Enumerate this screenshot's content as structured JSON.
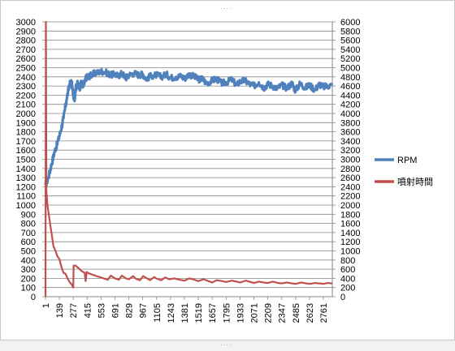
{
  "chart_data": {
    "type": "line",
    "title": "",
    "xlabel": "",
    "ylabel": "",
    "y_left": {
      "range": [
        0,
        3000
      ],
      "tick_step": 100
    },
    "y_right": {
      "range": [
        0,
        6000
      ],
      "tick_step": 200
    },
    "x_range": [
      1,
      2850
    ],
    "x_tick_labels": [
      "1",
      "139",
      "277",
      "415",
      "553",
      "691",
      "829",
      "967",
      "1105",
      "1243",
      "1381",
      "1519",
      "1657",
      "1795",
      "1933",
      "2071",
      "2209",
      "2347",
      "2485",
      "2623",
      "2761"
    ],
    "grid": "horizontal",
    "legend_position": "right",
    "series": [
      {
        "name": "RPM",
        "axis": "left",
        "color": "#4f81bd",
        "x": [
          1,
          30,
          60,
          90,
          120,
          150,
          180,
          210,
          240,
          260,
          277,
          290,
          300,
          320,
          340,
          360,
          380,
          400,
          415,
          440,
          470,
          500,
          553,
          600,
          650,
          691,
          720,
          760,
          800,
          829,
          880,
          930,
          967,
          1000,
          1050,
          1105,
          1150,
          1200,
          1243,
          1300,
          1350,
          1381,
          1430,
          1480,
          1519,
          1560,
          1600,
          1657,
          1700,
          1750,
          1795,
          1850,
          1900,
          1933,
          1980,
          2030,
          2071,
          2120,
          2170,
          2209,
          2260,
          2300,
          2347,
          2400,
          2450,
          2485,
          2530,
          2580,
          2623,
          2680,
          2720,
          2761,
          2800,
          2850
        ],
        "y": [
          1220,
          1300,
          1440,
          1580,
          1680,
          1800,
          1950,
          2150,
          2320,
          2340,
          2200,
          2160,
          2270,
          2330,
          2280,
          2340,
          2300,
          2380,
          2400,
          2410,
          2430,
          2440,
          2460,
          2450,
          2420,
          2430,
          2410,
          2440,
          2390,
          2420,
          2440,
          2420,
          2430,
          2380,
          2410,
          2420,
          2400,
          2430,
          2390,
          2400,
          2410,
          2380,
          2430,
          2400,
          2370,
          2380,
          2330,
          2360,
          2380,
          2330,
          2340,
          2370,
          2310,
          2350,
          2360,
          2320,
          2300,
          2340,
          2280,
          2320,
          2300,
          2270,
          2310,
          2280,
          2330,
          2250,
          2330,
          2280,
          2310,
          2260,
          2320,
          2290,
          2300,
          2310
        ]
      },
      {
        "name": "噴射時間",
        "axis": "right",
        "color": "#c0504d",
        "x": [
          1,
          5,
          10,
          20,
          40,
          60,
          80,
          100,
          120,
          140,
          160,
          180,
          200,
          220,
          240,
          260,
          277,
          280,
          300,
          330,
          360,
          390,
          400,
          410,
          430,
          470,
          520,
          580,
          620,
          650,
          690,
          730,
          760,
          800,
          830,
          870,
          900,
          940,
          970,
          1010,
          1040,
          1080,
          1110,
          1150,
          1190,
          1230,
          1280,
          1330,
          1381,
          1430,
          1480,
          1519,
          1570,
          1620,
          1657,
          1700,
          1760,
          1795,
          1850,
          1900,
          1933,
          1990,
          2040,
          2071,
          2120,
          2170,
          2209,
          2260,
          2310,
          2347,
          2400,
          2450,
          2485,
          2540,
          2590,
          2623,
          2680,
          2720,
          2761,
          2800,
          2850
        ],
        "y": [
          0,
          6000,
          2300,
          2000,
          1700,
          1400,
          1100,
          1000,
          880,
          820,
          640,
          520,
          500,
          400,
          320,
          270,
          200,
          680,
          680,
          620,
          560,
          520,
          340,
          540,
          510,
          480,
          440,
          400,
          370,
          460,
          400,
          370,
          460,
          400,
          380,
          450,
          390,
          360,
          450,
          400,
          360,
          430,
          390,
          360,
          420,
          380,
          400,
          370,
          350,
          400,
          370,
          340,
          380,
          340,
          310,
          360,
          340,
          320,
          350,
          330,
          310,
          350,
          320,
          300,
          330,
          310,
          300,
          330,
          300,
          290,
          310,
          290,
          280,
          310,
          290,
          280,
          300,
          290,
          280,
          300,
          290
        ]
      }
    ]
  }
}
